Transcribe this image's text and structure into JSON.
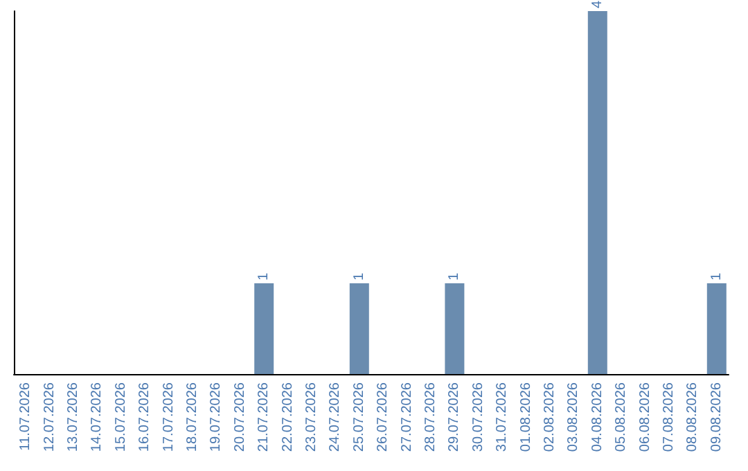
{
  "chart_data": {
    "type": "bar",
    "categories": [
      "11.07.2026",
      "12.07.2026",
      "13.07.2026",
      "14.07.2026",
      "15.07.2026",
      "16.07.2026",
      "17.07.2026",
      "18.07.2026",
      "19.07.2026",
      "20.07.2026",
      "21.07.2026",
      "22.07.2026",
      "23.07.2026",
      "24.07.2026",
      "25.07.2026",
      "26.07.2026",
      "27.07.2026",
      "28.07.2026",
      "29.07.2026",
      "30.07.2026",
      "31.07.2026",
      "01.08.2026",
      "02.08.2026",
      "03.08.2026",
      "04.08.2026",
      "05.08.2026",
      "06.08.2026",
      "07.08.2026",
      "08.08.2026",
      "09.08.2026"
    ],
    "values": [
      0,
      0,
      0,
      0,
      0,
      0,
      0,
      0,
      0,
      0,
      1,
      0,
      0,
      0,
      1,
      0,
      0,
      0,
      1,
      0,
      0,
      0,
      0,
      0,
      4,
      0,
      0,
      0,
      0,
      1
    ],
    "value_labels": [
      null,
      null,
      null,
      null,
      null,
      null,
      null,
      null,
      null,
      null,
      "1",
      null,
      null,
      null,
      "1",
      null,
      null,
      null,
      "1",
      null,
      null,
      null,
      null,
      null,
      "4",
      null,
      null,
      null,
      null,
      "1"
    ],
    "color": "#6a8caf"
  }
}
